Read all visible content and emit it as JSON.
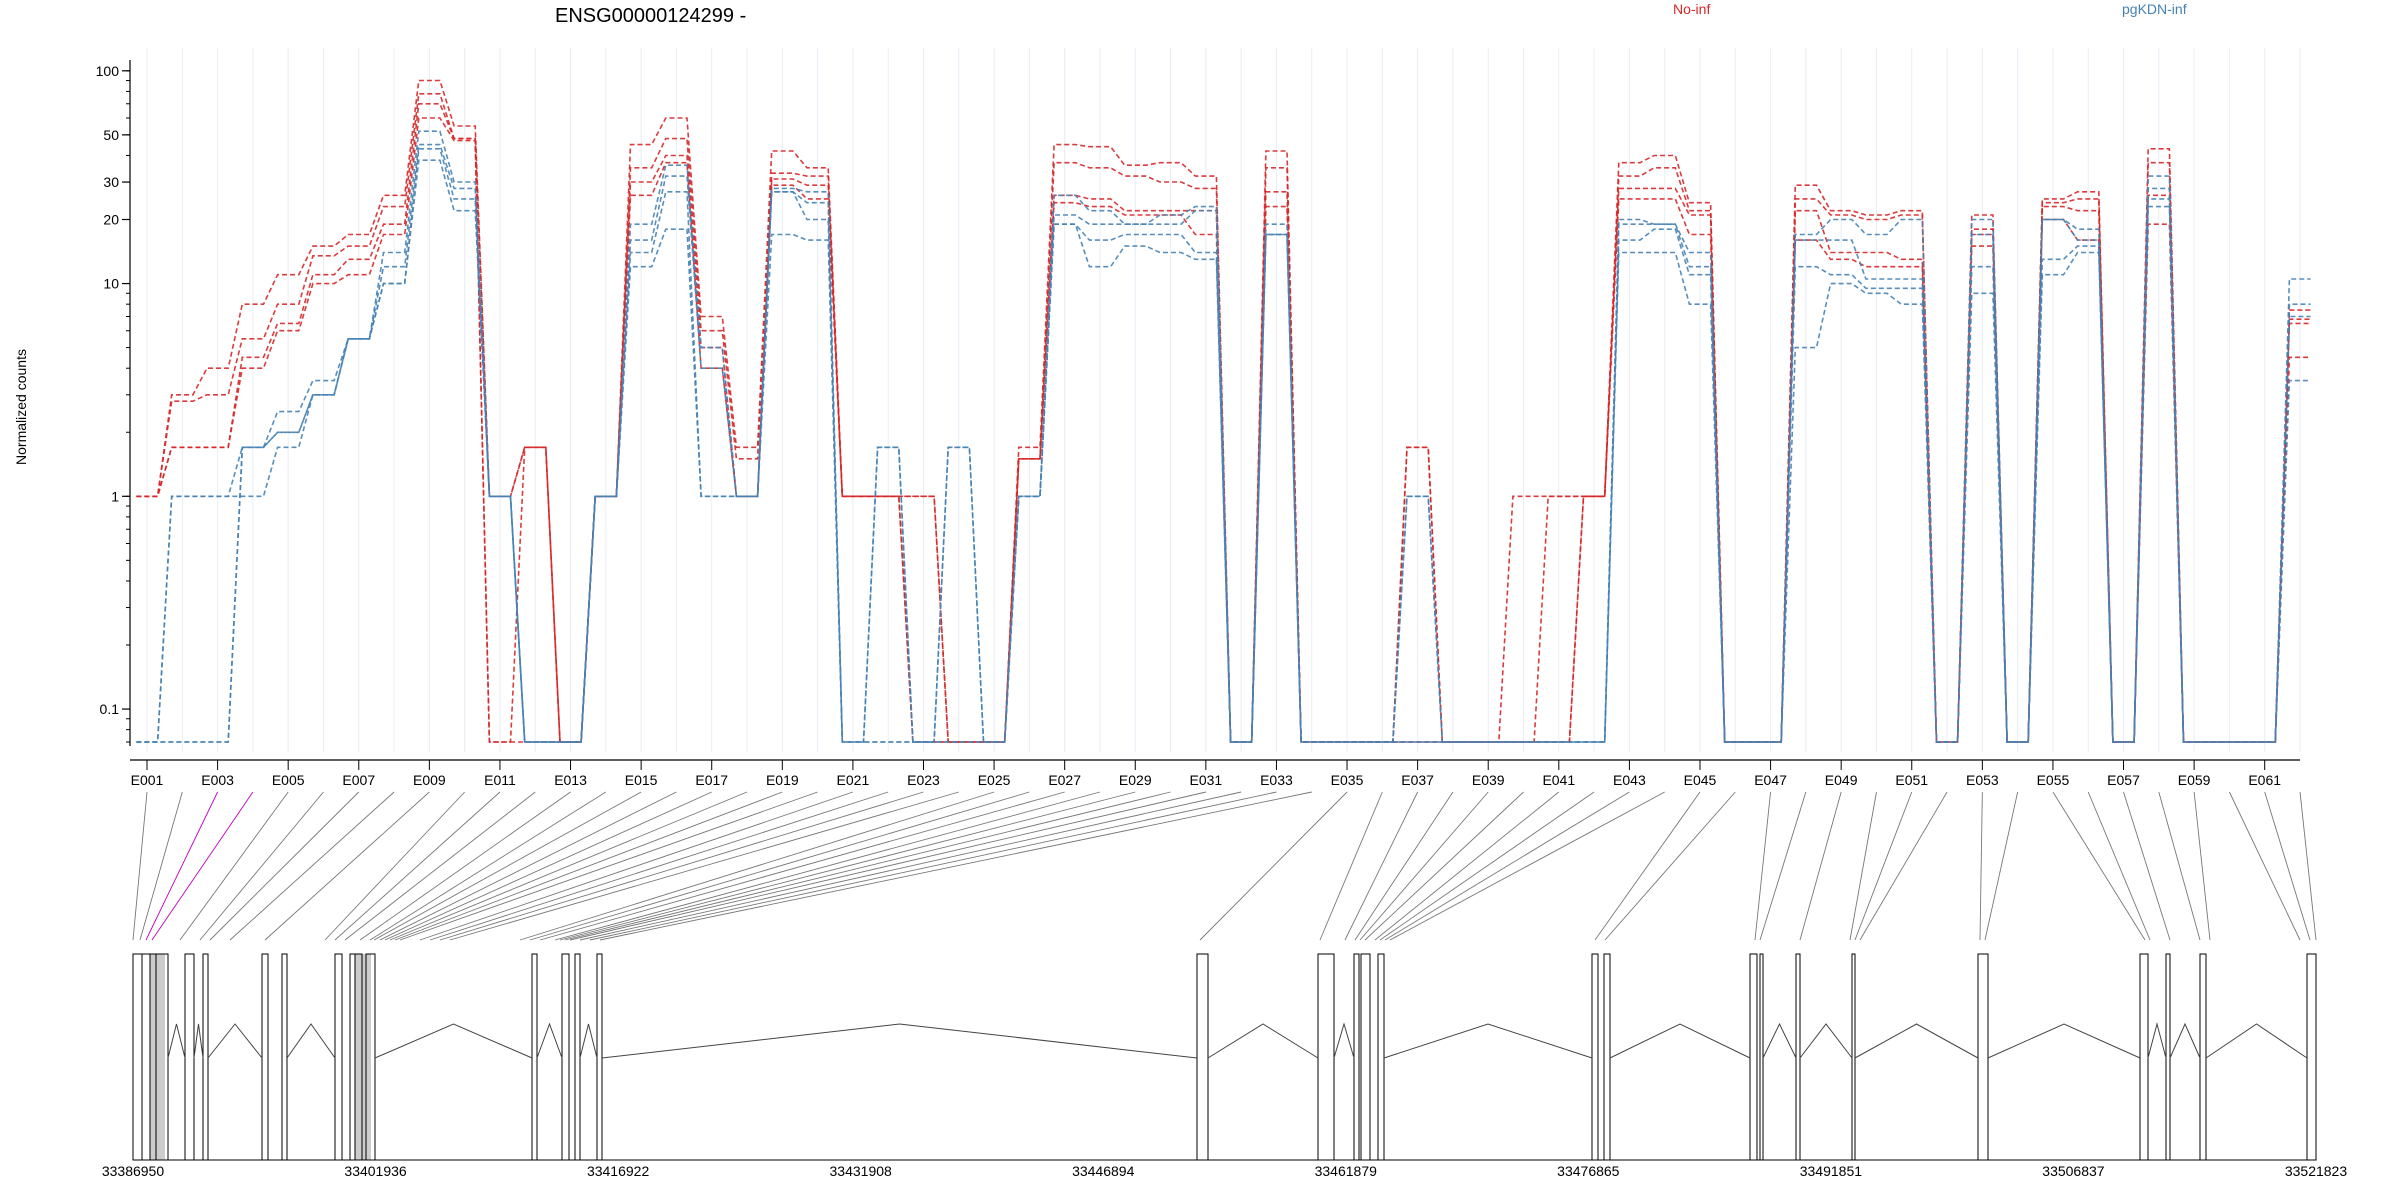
{
  "chart_data": {
    "type": "line",
    "title": "ENSG00000124299 -",
    "ylabel": "Normalized counts",
    "yscale": "log",
    "ylim": [
      0.07,
      110
    ],
    "yticks": [
      0.1,
      1,
      10,
      20,
      30,
      50,
      100
    ],
    "ytick_labels": [
      "0.1",
      "1",
      "10",
      "20",
      "30",
      "50",
      "100"
    ],
    "grid": true,
    "legend_placement": "top",
    "exon_labels_shown": [
      "E001",
      "E003",
      "E005",
      "E007",
      "E009",
      "E011",
      "E013",
      "E015",
      "E017",
      "E019",
      "E021",
      "E023",
      "E025",
      "E027",
      "E029",
      "E031",
      "E033",
      "E035",
      "E037",
      "E039",
      "E041",
      "E043",
      "E045",
      "E047",
      "E049",
      "E051",
      "E053",
      "E055",
      "E057",
      "E059",
      "E061"
    ],
    "genomic_ticks": [
      "33386950",
      "33401936",
      "33416922",
      "33431908",
      "33446894",
      "33461879",
      "33476865",
      "33491851",
      "33506837",
      "33521823"
    ],
    "genomic_range": [
      33386950,
      33521823
    ],
    "series": [
      {
        "name": "No-inf",
        "color": "#d62728",
        "replicates": [
          [
            1,
            3,
            4,
            8,
            11,
            15,
            17,
            26,
            90,
            55,
            1,
            1.7,
            0.07,
            1,
            45,
            60,
            7,
            1.7,
            42,
            35,
            1,
            1,
            1,
            0.07,
            0.07,
            1.7,
            45,
            44,
            36,
            37,
            32,
            0.07,
            42,
            0.07,
            0.07,
            0.07,
            1.7,
            0.07,
            0.07,
            1,
            1,
            1,
            37,
            40,
            24,
            0.07,
            0.07,
            29,
            22,
            21,
            22,
            0.07,
            21,
            0.07,
            25,
            27,
            0.07,
            43,
            0.07,
            0.07,
            0.07,
            7.5
          ],
          [
            1,
            2.8,
            3,
            5.5,
            8,
            13.5,
            15,
            23,
            78,
            48,
            1,
            1.7,
            0.07,
            1,
            35,
            48,
            6,
            1.5,
            33,
            32,
            1,
            1,
            1,
            0.07,
            0.07,
            1.5,
            37,
            35,
            32,
            30,
            28,
            0.07,
            35,
            0.07,
            0.07,
            0.07,
            1.7,
            0.07,
            0.07,
            0.07,
            1,
            1,
            32,
            35,
            22,
            0.07,
            0.07,
            25,
            21,
            20,
            21,
            0.07,
            18,
            0.07,
            24,
            25,
            0.07,
            37,
            0.07,
            0.07,
            0.07,
            6.8
          ],
          [
            1,
            1.7,
            1.7,
            4.5,
            6.5,
            11,
            13,
            19,
            70,
            48,
            0.07,
            1.7,
            0.07,
            1,
            30,
            40,
            5,
            1,
            31,
            29,
            1,
            1,
            0.07,
            0.07,
            0.07,
            1.5,
            26,
            25,
            22,
            22,
            22,
            0.07,
            27,
            0.07,
            0.07,
            0.07,
            0.07,
            0.07,
            0.07,
            0.07,
            0.07,
            1,
            28,
            28,
            21,
            0.07,
            0.07,
            22,
            14,
            14,
            13,
            0.07,
            17,
            0.07,
            23,
            22,
            0.07,
            26,
            0.07,
            0.07,
            0.07,
            6.5
          ],
          [
            1,
            1.7,
            1.7,
            4,
            6,
            10,
            11,
            17,
            60,
            47,
            0.07,
            0.07,
            0.07,
            1,
            26,
            37,
            4,
            1,
            29,
            25,
            1,
            1,
            0.07,
            0.07,
            0.07,
            1.5,
            24,
            23,
            21,
            21,
            17,
            0.07,
            23,
            0.07,
            0.07,
            0.07,
            0.07,
            0.07,
            0.07,
            0.07,
            0.07,
            1,
            25,
            25,
            17,
            0.07,
            0.07,
            16,
            13,
            12,
            12,
            0.07,
            15,
            0.07,
            20,
            16,
            0.07,
            19,
            0.07,
            0.07,
            0.07,
            4.5
          ]
        ]
      },
      {
        "name": "pgKDN-inf",
        "color": "#4682b4",
        "replicates": [
          [
            0.07,
            0.07,
            0.07,
            1.7,
            2.5,
            3.5,
            5.5,
            14,
            52,
            30,
            1,
            0.07,
            0.07,
            1,
            19,
            36,
            5,
            1,
            28,
            27,
            0.07,
            1.7,
            0.07,
            1.7,
            0.07,
            1,
            26,
            22,
            19,
            21,
            23,
            0.07,
            19,
            0.07,
            0.07,
            0.07,
            1,
            0.07,
            0.07,
            0.07,
            0.07,
            0.07,
            20,
            19,
            14,
            0.07,
            0.07,
            17,
            20,
            17,
            20,
            0.07,
            20,
            0.07,
            20,
            18,
            0.07,
            32,
            0.07,
            0.07,
            0.07,
            10.5
          ],
          [
            0.07,
            0.07,
            0.07,
            1.7,
            2,
            3,
            5.5,
            12,
            45,
            28,
            1,
            0.07,
            0.07,
            1,
            16,
            32,
            4,
            1,
            27,
            24,
            0.07,
            1.7,
            0.07,
            1.7,
            0.07,
            1,
            21,
            19,
            19,
            19,
            22,
            0.07,
            17,
            0.07,
            0.07,
            0.07,
            1,
            0.07,
            0.07,
            0.07,
            0.07,
            0.07,
            19,
            19,
            12,
            0.07,
            0.07,
            16,
            16,
            10.5,
            10.5,
            0.07,
            17,
            0.07,
            20,
            16,
            0.07,
            28,
            0.07,
            0.07,
            0.07,
            8
          ],
          [
            0.07,
            1,
            1,
            1.7,
            2,
            3,
            5.5,
            10,
            43,
            25,
            1,
            0.07,
            0.07,
            1,
            14,
            27,
            1,
            1,
            27,
            20,
            0.07,
            0.07,
            0.07,
            0.07,
            0.07,
            1,
            19,
            16,
            17,
            17,
            14,
            0.07,
            17,
            0.07,
            0.07,
            0.07,
            0.07,
            0.07,
            0.07,
            0.07,
            0.07,
            0.07,
            16,
            18,
            11,
            0.07,
            0.07,
            12,
            11,
            9.5,
            9.5,
            0.07,
            12,
            0.07,
            13,
            15,
            0.07,
            25,
            0.07,
            0.07,
            0.07,
            7
          ],
          [
            0.07,
            1,
            1,
            1,
            1.7,
            3,
            5.5,
            10,
            38,
            22,
            1,
            0.07,
            0.07,
            1,
            12,
            18,
            1,
            1,
            17,
            16,
            0.07,
            0.07,
            0.07,
            0.07,
            0.07,
            1,
            19,
            12,
            15,
            14,
            13,
            0.07,
            17,
            0.07,
            0.07,
            0.07,
            0.07,
            0.07,
            0.07,
            0.07,
            0.07,
            0.07,
            14,
            14,
            8,
            0.07,
            0.07,
            5,
            10,
            9,
            8,
            0.07,
            9,
            0.07,
            11,
            14,
            0.07,
            23,
            0.07,
            0.07,
            0.07,
            3.5
          ]
        ]
      }
    ],
    "exons_in_gene": 62
  }
}
